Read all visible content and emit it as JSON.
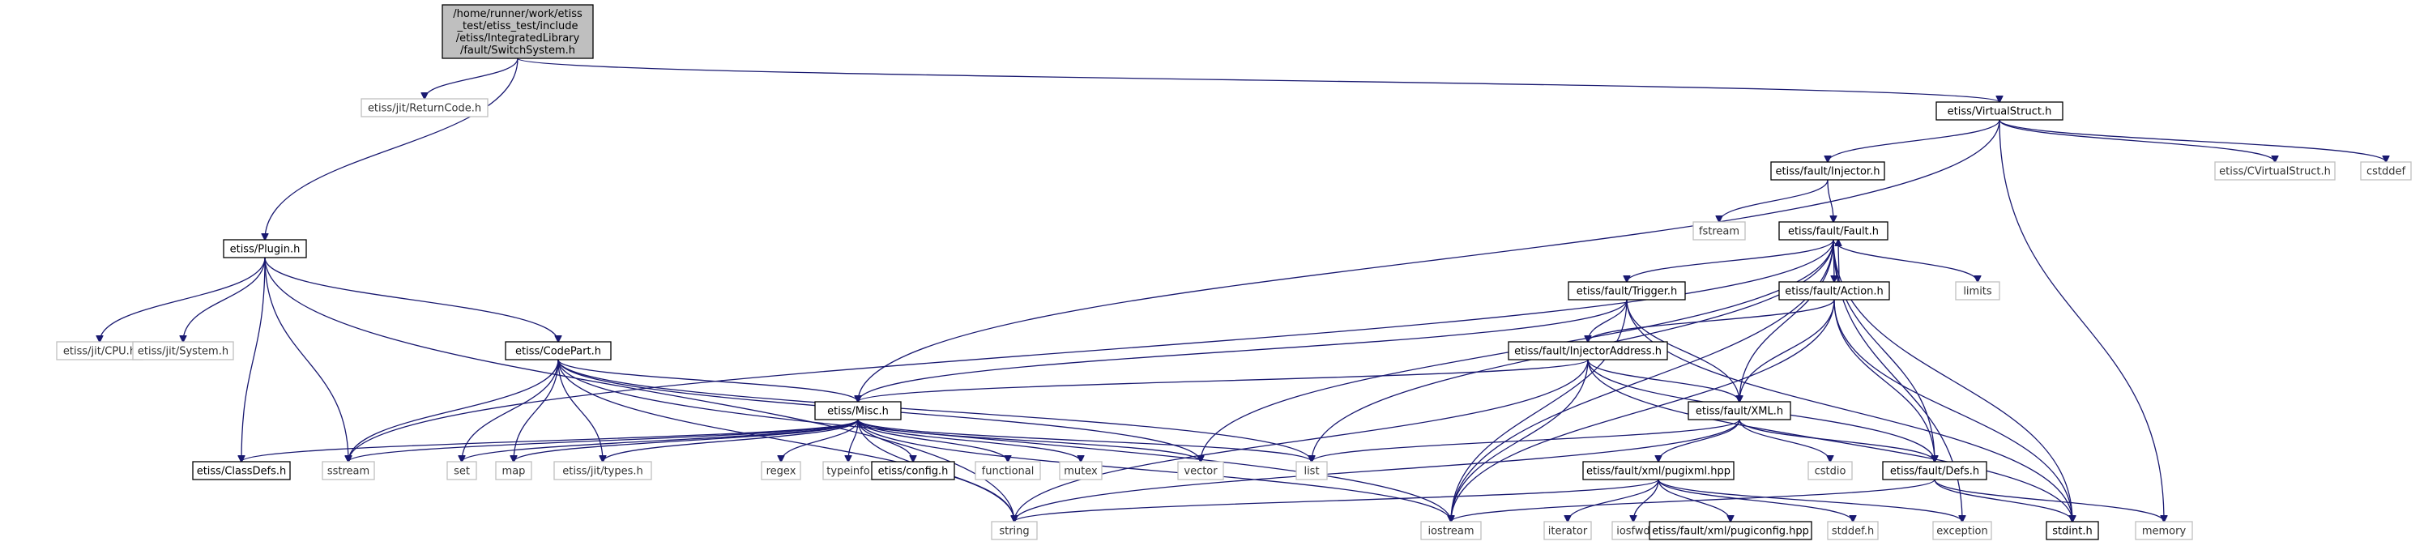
{
  "graph": {
    "nodes": {
      "root": {
        "lines": [
          "/home/runner/work/etiss",
          "_test/etiss_test/include",
          "/etiss/IntegratedLibrary",
          "/fault/SwitchSystem.h"
        ],
        "kind": "root"
      },
      "returncode": {
        "label": "etiss/jit/ReturnCode.h",
        "kind": "external"
      },
      "virtualstruct": {
        "label": "etiss/VirtualStruct.h",
        "kind": "internal"
      },
      "plugin": {
        "label": "etiss/Plugin.h",
        "kind": "internal"
      },
      "injector": {
        "label": "etiss/fault/Injector.h",
        "kind": "internal"
      },
      "cvirtualstruct": {
        "label": "etiss/CVirtualStruct.h",
        "kind": "external"
      },
      "cstddef": {
        "label": "cstddef",
        "kind": "external"
      },
      "fstream": {
        "label": "fstream",
        "kind": "external"
      },
      "fault": {
        "label": "etiss/fault/Fault.h",
        "kind": "internal"
      },
      "limits": {
        "label": "limits",
        "kind": "external"
      },
      "trigger": {
        "label": "etiss/fault/Trigger.h",
        "kind": "internal"
      },
      "action": {
        "label": "etiss/fault/Action.h",
        "kind": "internal"
      },
      "jitcpu": {
        "label": "etiss/jit/CPU.h",
        "kind": "external"
      },
      "jitsystem": {
        "label": "etiss/jit/System.h",
        "kind": "external"
      },
      "codepart": {
        "label": "etiss/CodePart.h",
        "kind": "internal"
      },
      "injectoraddress": {
        "label": "etiss/fault/InjectorAddress.h",
        "kind": "internal"
      },
      "misc": {
        "label": "etiss/Misc.h",
        "kind": "internal"
      },
      "xml": {
        "label": "etiss/fault/XML.h",
        "kind": "internal"
      },
      "classdefs": {
        "label": "etiss/ClassDefs.h",
        "kind": "internal"
      },
      "sstream": {
        "label": "sstream",
        "kind": "external"
      },
      "set": {
        "label": "set",
        "kind": "external"
      },
      "map": {
        "label": "map",
        "kind": "external"
      },
      "jittypes": {
        "label": "etiss/jit/types.h",
        "kind": "external"
      },
      "regex": {
        "label": "regex",
        "kind": "external"
      },
      "typeinfo": {
        "label": "typeinfo",
        "kind": "external"
      },
      "config": {
        "label": "etiss/config.h",
        "kind": "internal"
      },
      "functional": {
        "label": "functional",
        "kind": "external"
      },
      "mutex": {
        "label": "mutex",
        "kind": "external"
      },
      "vector": {
        "label": "vector",
        "kind": "external"
      },
      "list": {
        "label": "list",
        "kind": "external"
      },
      "cstdio": {
        "label": "cstdio",
        "kind": "external"
      },
      "defs": {
        "label": "etiss/fault/Defs.h",
        "kind": "internal"
      },
      "pugixml": {
        "label": "etiss/fault/xml/pugixml.hpp",
        "kind": "internal"
      },
      "memory": {
        "label": "memory",
        "kind": "external"
      },
      "string": {
        "label": "string",
        "kind": "external"
      },
      "iostream": {
        "label": "iostream",
        "kind": "external"
      },
      "iterator": {
        "label": "iterator",
        "kind": "external"
      },
      "iosfwd": {
        "label": "iosfwd",
        "kind": "external"
      },
      "pugiconfig": {
        "label": "etiss/fault/xml/pugiconfig.hpp",
        "kind": "internal"
      },
      "stddefh": {
        "label": "stddef.h",
        "kind": "external"
      },
      "exception": {
        "label": "exception",
        "kind": "external"
      },
      "stdinth": {
        "label": "stdint.h",
        "kind": "internal"
      }
    },
    "edges": [
      [
        "root",
        "returncode"
      ],
      [
        "root",
        "virtualstruct"
      ],
      [
        "root",
        "plugin"
      ],
      [
        "virtualstruct",
        "injector"
      ],
      [
        "virtualstruct",
        "cvirtualstruct"
      ],
      [
        "virtualstruct",
        "cstddef"
      ],
      [
        "virtualstruct",
        "memory"
      ],
      [
        "virtualstruct",
        "misc"
      ],
      [
        "injector",
        "fstream"
      ],
      [
        "injector",
        "fault"
      ],
      [
        "fault",
        "limits"
      ],
      [
        "fault",
        "trigger"
      ],
      [
        "fault",
        "action"
      ],
      [
        "fault",
        "sstream"
      ],
      [
        "fault",
        "list"
      ],
      [
        "fault",
        "vector"
      ],
      [
        "fault",
        "iostream"
      ],
      [
        "fault",
        "xml"
      ],
      [
        "fault",
        "defs"
      ],
      [
        "fault",
        "exception"
      ],
      [
        "fault",
        "stdinth"
      ],
      [
        "action",
        "fault"
      ],
      [
        "action",
        "injectoraddress"
      ],
      [
        "action",
        "xml"
      ],
      [
        "action",
        "defs"
      ],
      [
        "action",
        "stdinth"
      ],
      [
        "action",
        "iostream"
      ],
      [
        "trigger",
        "misc"
      ],
      [
        "trigger",
        "injectoraddress"
      ],
      [
        "trigger",
        "xml"
      ],
      [
        "trigger",
        "iostream"
      ],
      [
        "trigger",
        "stdinth"
      ],
      [
        "injectoraddress",
        "misc"
      ],
      [
        "injectoraddress",
        "xml"
      ],
      [
        "injectoraddress",
        "defs"
      ],
      [
        "injectoraddress",
        "string"
      ],
      [
        "injectoraddress",
        "iostream"
      ],
      [
        "injectoraddress",
        "stdinth"
      ],
      [
        "plugin",
        "jitcpu"
      ],
      [
        "plugin",
        "jitsystem"
      ],
      [
        "plugin",
        "codepart"
      ],
      [
        "plugin",
        "classdefs"
      ],
      [
        "plugin",
        "sstream"
      ],
      [
        "plugin",
        "string"
      ],
      [
        "codepart",
        "misc"
      ],
      [
        "codepart",
        "sstream"
      ],
      [
        "codepart",
        "set"
      ],
      [
        "codepart",
        "map"
      ],
      [
        "codepart",
        "jittypes"
      ],
      [
        "codepart",
        "vector"
      ],
      [
        "codepart",
        "list"
      ],
      [
        "codepart",
        "string"
      ],
      [
        "codepart",
        "iostream"
      ],
      [
        "misc",
        "classdefs"
      ],
      [
        "misc",
        "sstream"
      ],
      [
        "misc",
        "set"
      ],
      [
        "misc",
        "map"
      ],
      [
        "misc",
        "jittypes"
      ],
      [
        "misc",
        "regex"
      ],
      [
        "misc",
        "typeinfo"
      ],
      [
        "misc",
        "config"
      ],
      [
        "misc",
        "functional"
      ],
      [
        "misc",
        "mutex"
      ],
      [
        "misc",
        "vector"
      ],
      [
        "misc",
        "list"
      ],
      [
        "misc",
        "string"
      ],
      [
        "misc",
        "iostream"
      ],
      [
        "xml",
        "list"
      ],
      [
        "xml",
        "cstdio"
      ],
      [
        "xml",
        "defs"
      ],
      [
        "xml",
        "pugixml"
      ],
      [
        "xml",
        "string"
      ],
      [
        "pugixml",
        "string"
      ],
      [
        "pugixml",
        "iterator"
      ],
      [
        "pugixml",
        "iosfwd"
      ],
      [
        "pugixml",
        "pugiconfig"
      ],
      [
        "pugixml",
        "stddefh"
      ],
      [
        "pugixml",
        "exception"
      ],
      [
        "defs",
        "iostream"
      ],
      [
        "defs",
        "memory"
      ],
      [
        "defs",
        "stdinth"
      ]
    ]
  }
}
